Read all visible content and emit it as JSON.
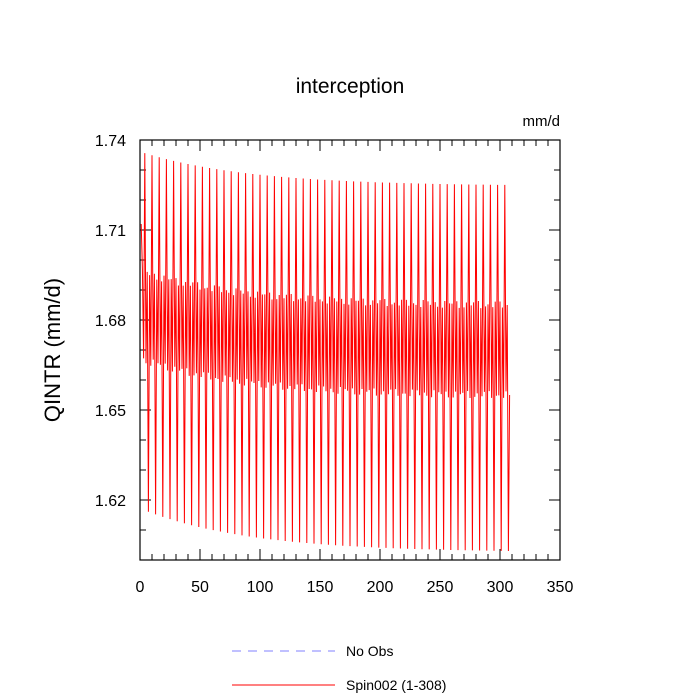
{
  "chart_data": {
    "type": "line",
    "title": "interception",
    "units": "mm/d",
    "ylabel": "QINTR  (mm/d)",
    "xlabel": "",
    "xlim": [
      0,
      350
    ],
    "ylim": [
      1.6,
      1.74
    ],
    "xticks": [
      0,
      50,
      100,
      150,
      200,
      250,
      300,
      350
    ],
    "xtick_labels": [
      "0",
      "50",
      "100",
      "150",
      "200",
      "250",
      "300",
      "350"
    ],
    "yticks": [
      1.62,
      1.65,
      1.68,
      1.71,
      1.74
    ],
    "ytick_labels": [
      "1.62",
      "1.65",
      "1.68",
      "1.71",
      "1.74"
    ],
    "grid": false,
    "legend_position": "bottom",
    "series": [
      {
        "name": "No Obs",
        "style": "dashed",
        "color": "#8080ff",
        "values": []
      },
      {
        "name": "Spin002 (1-308)",
        "style": "solid",
        "color": "#ff0000",
        "n_points": 308,
        "period": 6,
        "cycle_pattern": [
          "annual_min",
          "high_secondary",
          "low_secondary",
          "annual_max",
          "low_secondary",
          "high_secondary"
        ],
        "annual_max_start": 1.736,
        "annual_max_end": 1.725,
        "annual_min_start": 1.617,
        "annual_min_end": 1.603,
        "high_secondary_start": 1.696,
        "high_secondary_end": 1.685,
        "low_secondary_start": 1.667,
        "low_secondary_end": 1.655,
        "final_value": 1.655
      }
    ]
  }
}
